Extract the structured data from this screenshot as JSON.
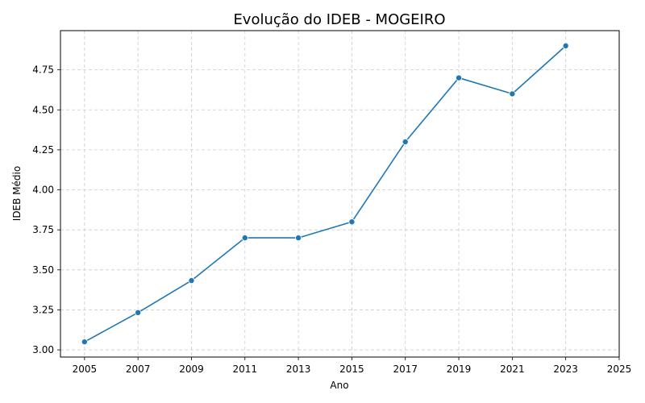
{
  "chart_data": {
    "type": "line",
    "title": "Evolução do IDEB - MOGEIRO",
    "xlabel": "Ano",
    "ylabel": "IDEB Médio",
    "x": [
      2005,
      2007,
      2009,
      2011,
      2013,
      2015,
      2017,
      2019,
      2021,
      2023
    ],
    "series": [
      {
        "values": [
          3.05,
          3.233,
          3.433,
          3.7,
          3.7,
          3.8,
          4.3,
          4.7,
          4.6,
          4.9
        ]
      }
    ],
    "xticks": [
      "2005",
      "2007",
      "2009",
      "2011",
      "2013",
      "2015",
      "2017",
      "2019",
      "2021",
      "2023",
      "2025"
    ],
    "yticks": [
      "3.00",
      "3.25",
      "3.50",
      "3.75",
      "4.00",
      "4.25",
      "4.50",
      "4.75"
    ],
    "xlim": [
      2004.1,
      2025
    ],
    "ylim": [
      2.955,
      4.995
    ],
    "grid": true,
    "line_color": "#1f77b4",
    "grid_color": "#cccccc"
  }
}
